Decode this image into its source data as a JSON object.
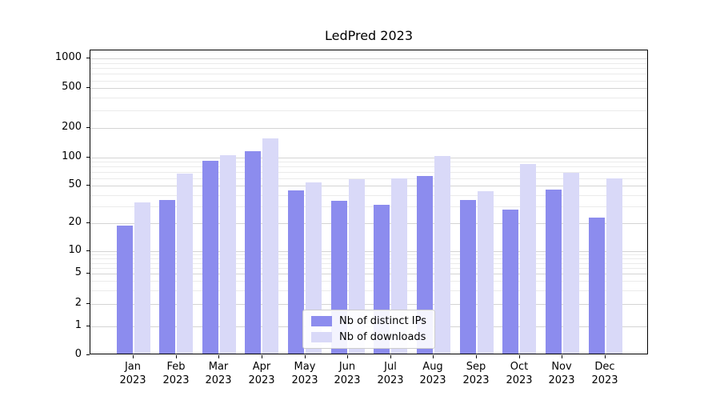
{
  "chart_data": {
    "type": "bar",
    "title": "LedPred 2023",
    "categories": [
      "Jan",
      "Feb",
      "Mar",
      "Apr",
      "May",
      "Jun",
      "Jul",
      "Aug",
      "Sep",
      "Oct",
      "Nov",
      "Dec"
    ],
    "year": "2023",
    "series": [
      {
        "name": "Nb of distinct IPs",
        "color": "#8c8cee",
        "values": [
          18,
          34,
          88,
          112,
          43,
          33,
          30,
          61,
          34,
          27,
          44,
          22
        ]
      },
      {
        "name": "Nb of downloads",
        "color": "#d9d9f8",
        "values": [
          32,
          65,
          101,
          150,
          52,
          56,
          58,
          100,
          42,
          82,
          66,
          58
        ]
      }
    ],
    "yticks": [
      0,
      1,
      2,
      5,
      10,
      20,
      50,
      100,
      200,
      500,
      1000
    ],
    "yscale": "symlog",
    "ylim": [
      0,
      1230
    ],
    "xlabel": "",
    "ylabel": "",
    "grid": true,
    "legend_position": "lower center"
  }
}
